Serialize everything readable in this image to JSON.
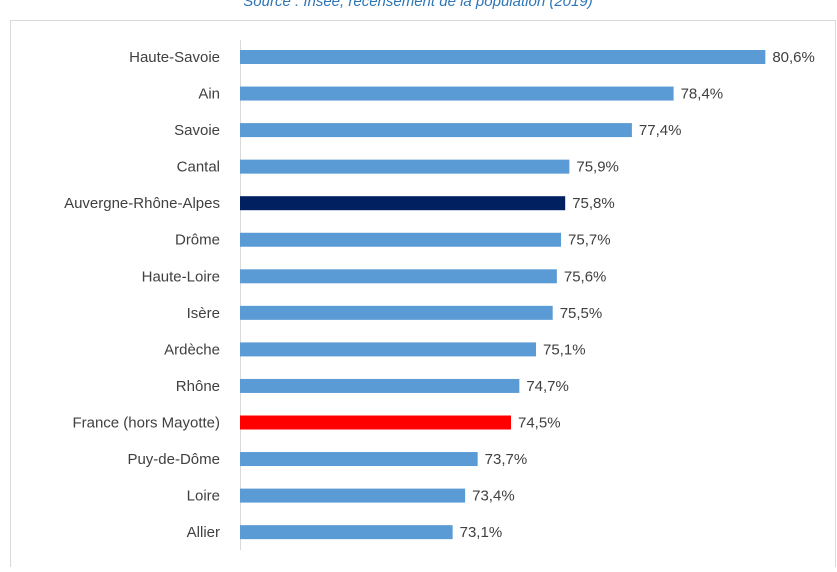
{
  "chart_data": {
    "type": "bar",
    "orientation": "horizontal",
    "subtitle": "Source : Insee, recensement de la population (2019)",
    "categories": [
      "Haute-Savoie",
      "Ain",
      "Savoie",
      "Cantal",
      "Auvergne-Rhône-Alpes",
      "Drôme",
      "Haute-Loire",
      "Isère",
      "Ardèche",
      "Rhône",
      "France (hors Mayotte)",
      "Puy-de-Dôme",
      "Loire",
      "Allier"
    ],
    "values": [
      80.6,
      78.4,
      77.4,
      75.9,
      75.8,
      75.7,
      75.6,
      75.5,
      75.1,
      74.7,
      74.5,
      73.7,
      73.4,
      73.1
    ],
    "value_labels": [
      "80,6%",
      "78,4%",
      "77,4%",
      "75,9%",
      "75,8%",
      "75,7%",
      "75,6%",
      "75,5%",
      "75,1%",
      "74,7%",
      "74,5%",
      "73,7%",
      "73,4%",
      "73,1%"
    ],
    "colors": [
      "#5b9bd5",
      "#5b9bd5",
      "#5b9bd5",
      "#5b9bd5",
      "#002060",
      "#5b9bd5",
      "#5b9bd5",
      "#5b9bd5",
      "#5b9bd5",
      "#5b9bd5",
      "#ff0000",
      "#5b9bd5",
      "#5b9bd5",
      "#5b9bd5"
    ],
    "xlim": [
      68,
      81
    ]
  }
}
